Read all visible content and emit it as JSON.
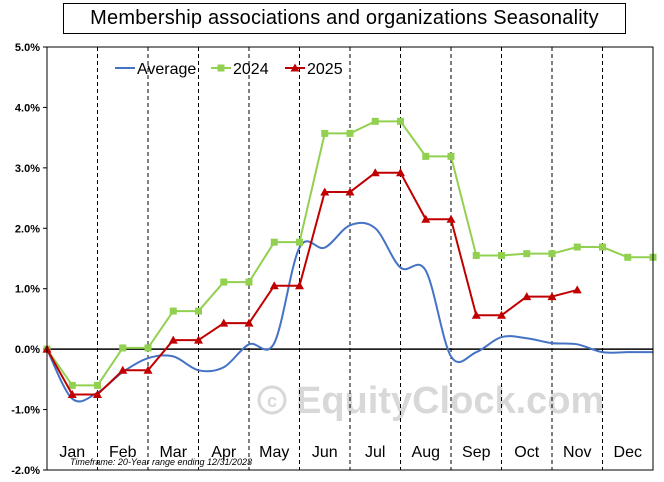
{
  "chart_data": {
    "type": "line",
    "title": "Membership associations and organizations Seasonality",
    "xlabel": "",
    "ylabel": "",
    "ylim": [
      -2.0,
      5.0
    ],
    "yticks": [
      -2.0,
      -1.0,
      0.0,
      1.0,
      2.0,
      3.0,
      4.0,
      5.0
    ],
    "ytick_labels": [
      "-2.0%",
      "-1.0%",
      "0.0%",
      "1.0%",
      "2.0%",
      "3.0%",
      "4.0%",
      "5.0%"
    ],
    "months": [
      "Jan",
      "Feb",
      "Mar",
      "Apr",
      "May",
      "Jun",
      "Jul",
      "Aug",
      "Sep",
      "Oct",
      "Nov",
      "Dec"
    ],
    "x_range": [
      0,
      24
    ],
    "grid": "vertical dashed lines at month boundaries",
    "legend_position": "top-left",
    "footnote": "Timeframe: 20-Year range ending 12/31/2023",
    "watermark": "EquityClock.com",
    "series": [
      {
        "name": "Average",
        "color": "#4472c4",
        "marker": "none",
        "smooth": true,
        "x": [
          0,
          1,
          2,
          3,
          4,
          5,
          6,
          7,
          8,
          9,
          10,
          11,
          12,
          13,
          14,
          15,
          16,
          17,
          18,
          19,
          20,
          21,
          22,
          23,
          24
        ],
        "values": [
          0.0,
          -0.82,
          -0.72,
          -0.38,
          -0.15,
          -0.12,
          -0.35,
          -0.3,
          0.08,
          0.1,
          1.68,
          1.68,
          2.05,
          2.0,
          1.35,
          1.3,
          -0.12,
          -0.05,
          0.2,
          0.18,
          0.1,
          0.08,
          -0.05,
          -0.05,
          -0.05
        ]
      },
      {
        "name": "2024",
        "color": "#92d050",
        "marker": "square",
        "smooth": false,
        "x": [
          0,
          1,
          2,
          3,
          4,
          5,
          6,
          7,
          8,
          9,
          10,
          11,
          12,
          13,
          14,
          15,
          16,
          17,
          18,
          19,
          20,
          21,
          22,
          23,
          24
        ],
        "values": [
          0.0,
          -0.6,
          -0.6,
          0.02,
          0.02,
          0.63,
          0.63,
          1.11,
          1.11,
          1.77,
          1.77,
          3.57,
          3.57,
          3.77,
          3.77,
          3.19,
          3.19,
          1.55,
          1.55,
          1.58,
          1.58,
          1.69,
          1.69,
          1.52,
          1.52
        ]
      },
      {
        "name": "2025",
        "color": "#c00000",
        "marker": "triangle",
        "smooth": false,
        "x": [
          0,
          1,
          2,
          3,
          4,
          5,
          6,
          7,
          8,
          9,
          10,
          11,
          12,
          13,
          14,
          15,
          16,
          17,
          18,
          19,
          20,
          21
        ],
        "values": [
          0.0,
          -0.75,
          -0.75,
          -0.35,
          -0.35,
          0.15,
          0.15,
          0.43,
          0.43,
          1.05,
          1.05,
          2.6,
          2.6,
          2.92,
          2.92,
          2.15,
          2.15,
          0.56,
          0.56,
          0.87,
          0.87,
          0.98
        ]
      }
    ]
  }
}
